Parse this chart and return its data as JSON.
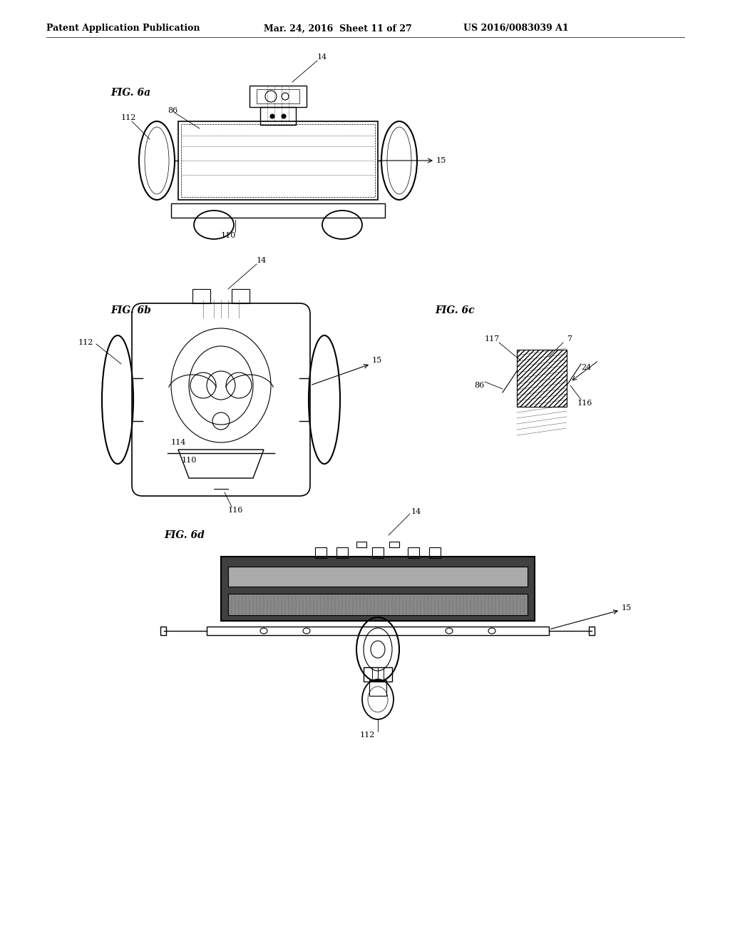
{
  "bg_color": "#ffffff",
  "header_text": "Patent Application Publication",
  "header_date": "Mar. 24, 2016  Sheet 11 of 27",
  "header_patent": "US 2016/0083039 A1",
  "fig6a_label": "FIG. 6a",
  "fig6b_label": "FIG. 6b",
  "fig6c_label": "FIG. 6c",
  "fig6d_label": "FIG. 6d",
  "line_color": "#000000",
  "line_width": 1.0,
  "thin_line": 0.5,
  "thick_line": 1.5
}
